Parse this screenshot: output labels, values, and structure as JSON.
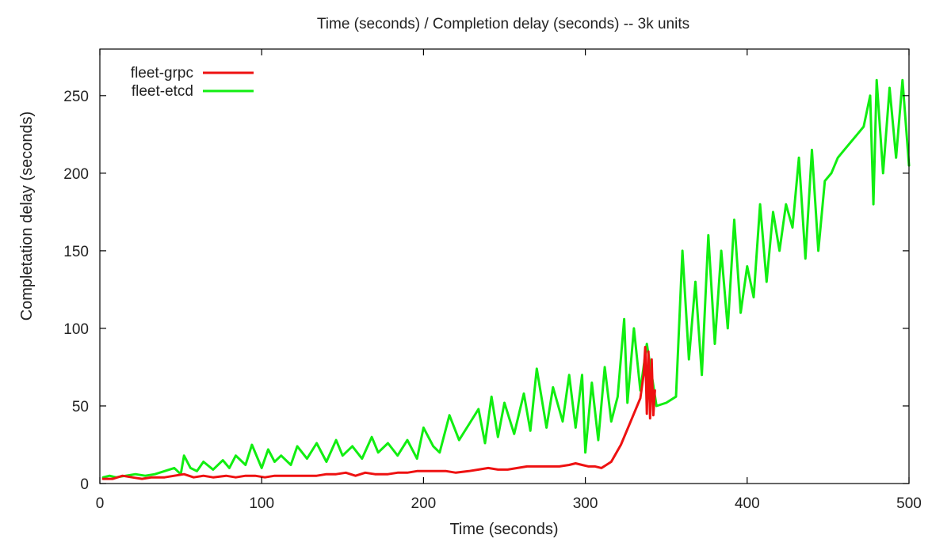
{
  "chart_data": {
    "type": "line",
    "title": "Time (seconds) / Completion delay (seconds) -- 3k units",
    "xlabel": "Time (seconds)",
    "ylabel": "Completation delay (seconds)",
    "xlim": [
      0,
      500
    ],
    "ylim": [
      0,
      280
    ],
    "xticks": [
      0,
      100,
      200,
      300,
      400,
      500
    ],
    "yticks": [
      0,
      50,
      100,
      150,
      200,
      250
    ],
    "grid": false,
    "legend_position": "top-left",
    "series": [
      {
        "name": "fleet-grpc",
        "color": "#ee1111",
        "x": [
          2,
          8,
          14,
          20,
          26,
          32,
          40,
          46,
          52,
          58,
          64,
          70,
          78,
          84,
          90,
          96,
          102,
          108,
          114,
          120,
          128,
          134,
          140,
          146,
          152,
          158,
          164,
          170,
          178,
          184,
          190,
          196,
          202,
          208,
          214,
          220,
          228,
          234,
          240,
          246,
          252,
          258,
          264,
          270,
          278,
          284,
          290,
          294,
          298,
          302,
          306,
          310,
          316,
          322,
          328,
          334,
          336,
          337,
          338,
          339,
          340,
          341,
          342,
          343
        ],
        "y": [
          3,
          3,
          5,
          4,
          3,
          4,
          4,
          5,
          6,
          4,
          5,
          4,
          5,
          4,
          5,
          5,
          4,
          5,
          5,
          5,
          5,
          5,
          6,
          6,
          7,
          5,
          7,
          6,
          6,
          7,
          7,
          8,
          8,
          8,
          8,
          7,
          8,
          9,
          10,
          9,
          9,
          10,
          11,
          11,
          11,
          11,
          12,
          13,
          12,
          11,
          11,
          10,
          14,
          25,
          40,
          55,
          70,
          88,
          45,
          85,
          42,
          80,
          44,
          60
        ]
      },
      {
        "name": "fleet-etcd",
        "color": "#11ee11",
        "x": [
          2,
          6,
          10,
          16,
          22,
          28,
          34,
          40,
          46,
          50,
          52,
          56,
          60,
          64,
          70,
          76,
          80,
          84,
          90,
          94,
          100,
          104,
          108,
          112,
          118,
          122,
          128,
          134,
          140,
          146,
          150,
          156,
          162,
          168,
          172,
          178,
          184,
          190,
          196,
          200,
          206,
          210,
          216,
          222,
          228,
          234,
          238,
          242,
          246,
          250,
          256,
          262,
          266,
          270,
          276,
          280,
          286,
          290,
          294,
          298,
          300,
          304,
          308,
          312,
          316,
          320,
          324,
          326,
          330,
          334,
          338,
          344,
          350,
          356,
          360,
          364,
          368,
          372,
          376,
          380,
          384,
          388,
          392,
          396,
          400,
          404,
          408,
          412,
          416,
          420,
          424,
          428,
          432,
          436,
          440,
          444,
          448,
          452,
          456,
          460,
          464,
          468,
          472,
          476,
          478,
          480,
          484,
          488,
          492,
          496,
          500
        ],
        "y": [
          4,
          5,
          4,
          5,
          6,
          5,
          6,
          8,
          10,
          6,
          18,
          10,
          8,
          14,
          9,
          15,
          10,
          18,
          12,
          25,
          10,
          22,
          14,
          18,
          12,
          24,
          16,
          26,
          14,
          28,
          18,
          24,
          16,
          30,
          20,
          26,
          18,
          28,
          16,
          36,
          24,
          20,
          44,
          28,
          38,
          48,
          26,
          56,
          30,
          52,
          32,
          58,
          34,
          74,
          36,
          62,
          40,
          70,
          36,
          70,
          20,
          65,
          28,
          75,
          40,
          56,
          106,
          52,
          100,
          60,
          90,
          50,
          52,
          56,
          150,
          80,
          130,
          70,
          160,
          90,
          150,
          100,
          170,
          110,
          140,
          120,
          180,
          130,
          175,
          150,
          180,
          165,
          210,
          145,
          215,
          150,
          195,
          200,
          210,
          215,
          220,
          225,
          230,
          250,
          180,
          260,
          200,
          255,
          210,
          260,
          205
        ]
      }
    ]
  }
}
